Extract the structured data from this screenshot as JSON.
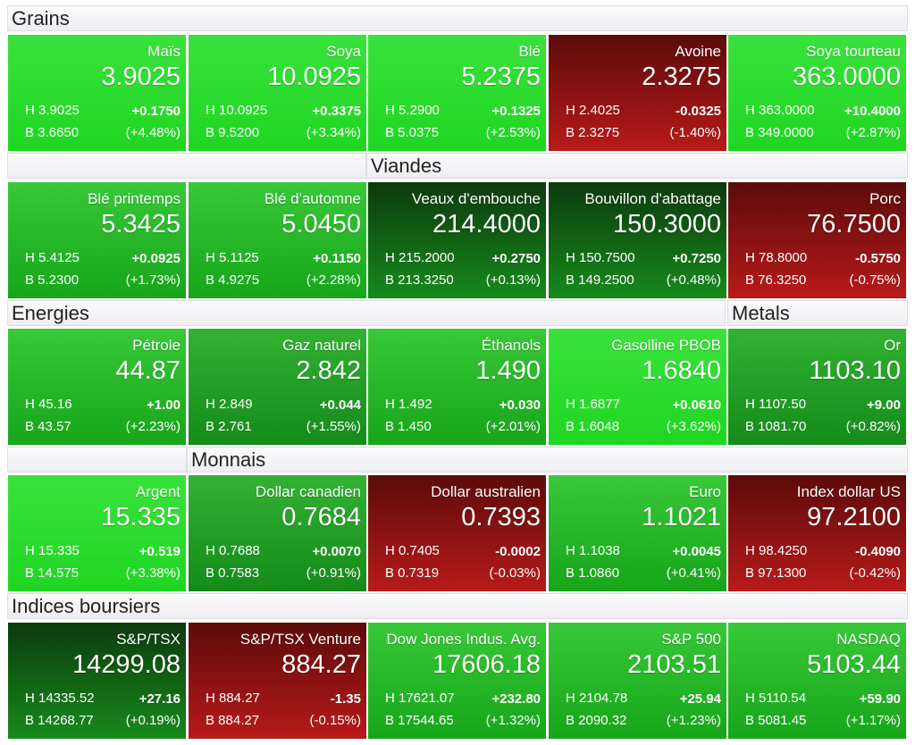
{
  "sections": {
    "grains": "Grains",
    "viandes": "Viandes",
    "energies": "Energies",
    "metals": "Metals",
    "monnais": "Monnais",
    "indices": "Indices boursiers"
  },
  "tiles": [
    {
      "name": "Maïs",
      "price": "3.9025",
      "high": "H 3.9025",
      "low": "B 3.6650",
      "change": "+0.1750",
      "pct": "(+4.48%)"
    },
    {
      "name": "Soya",
      "price": "10.0925",
      "high": "H 10.0925",
      "low": "B 9.5200",
      "change": "+0.3375",
      "pct": "(+3.34%)"
    },
    {
      "name": "Blé",
      "price": "5.2375",
      "high": "H 5.2900",
      "low": "B 5.0375",
      "change": "+0.1325",
      "pct": "(+2.53%)"
    },
    {
      "name": "Avoine",
      "price": "2.3275",
      "high": "H 2.4025",
      "low": "B 2.3275",
      "change": "-0.0325",
      "pct": "(-1.40%)"
    },
    {
      "name": "Soya tourteau",
      "price": "363.0000",
      "high": "H 363.0000",
      "low": "B 349.0000",
      "change": "+10.4000",
      "pct": "(+2.87%)"
    },
    {
      "name": "Blé printemps",
      "price": "5.3425",
      "high": "H 5.4125",
      "low": "B 5.2300",
      "change": "+0.0925",
      "pct": "(+1.73%)"
    },
    {
      "name": "Blé d'automne",
      "price": "5.0450",
      "high": "H 5.1125",
      "low": "B 4.9275",
      "change": "+0.1150",
      "pct": "(+2.28%)"
    },
    {
      "name": "Veaux d'embouche",
      "price": "214.4000",
      "high": "H 215.2000",
      "low": "B 213.3250",
      "change": "+0.2750",
      "pct": "(+0.13%)"
    },
    {
      "name": "Bouvillon d'abattage",
      "price": "150.3000",
      "high": "H 150.7500",
      "low": "B 149.2500",
      "change": "+0.7250",
      "pct": "(+0.48%)"
    },
    {
      "name": "Porc",
      "price": "76.7500",
      "high": "H 78.8000",
      "low": "B 76.3250",
      "change": "-0.5750",
      "pct": "(-0.75%)"
    },
    {
      "name": "Pétrole",
      "price": "44.87",
      "high": "H 45.16",
      "low": "B 43.57",
      "change": "+1.00",
      "pct": "(+2.23%)"
    },
    {
      "name": "Gaz naturel",
      "price": "2.842",
      "high": "H 2.849",
      "low": "B 2.761",
      "change": "+0.044",
      "pct": "(+1.55%)"
    },
    {
      "name": "Éthanols",
      "price": "1.490",
      "high": "H 1.492",
      "low": "B 1.450",
      "change": "+0.030",
      "pct": "(+2.01%)"
    },
    {
      "name": "Gasolline PBOB",
      "price": "1.6840",
      "high": "H 1.6877",
      "low": "B 1.6048",
      "change": "+0.0610",
      "pct": "(+3.62%)"
    },
    {
      "name": "Or",
      "price": "1103.10",
      "high": "H 1107.50",
      "low": "B 1081.70",
      "change": "+9.00",
      "pct": "(+0.82%)"
    },
    {
      "name": "Argent",
      "price": "15.335",
      "high": "H 15.335",
      "low": "B 14.575",
      "change": "+0.519",
      "pct": "(+3.38%)"
    },
    {
      "name": "Dollar canadien",
      "price": "0.7684",
      "high": "H 0.7688",
      "low": "B 0.7583",
      "change": "+0.0070",
      "pct": "(+0.91%)"
    },
    {
      "name": "Dollar australien",
      "price": "0.7393",
      "high": "H 0.7405",
      "low": "B 0.7319",
      "change": "-0.0002",
      "pct": "(-0.03%)"
    },
    {
      "name": "Euro",
      "price": "1.1021",
      "high": "H 1.1038",
      "low": "B 1.0860",
      "change": "+0.0045",
      "pct": "(+0.41%)"
    },
    {
      "name": "Index dollar US",
      "price": "97.2100",
      "high": "H 98.4250",
      "low": "B 97.1300",
      "change": "-0.4090",
      "pct": "(-0.42%)"
    },
    {
      "name": "S&P/TSX",
      "price": "14299.08",
      "high": "H 14335.52",
      "low": "B 14268.77",
      "change": "+27.16",
      "pct": "(+0.19%)"
    },
    {
      "name": "S&P/TSX Venture",
      "price": "884.27",
      "high": "H 884.27",
      "low": "B 884.27",
      "change": "-1.35",
      "pct": "(-0.15%)"
    },
    {
      "name": "Dow Jones Indus. Avg.",
      "price": "17606.18",
      "high": "H 17621.07",
      "low": "B 17544.65",
      "change": "+232.80",
      "pct": "(+1.32%)"
    },
    {
      "name": "S&P 500",
      "price": "2103.51",
      "high": "H 2104.78",
      "low": "B 2090.32",
      "change": "+25.94",
      "pct": "(+1.23%)"
    },
    {
      "name": "NASDAQ",
      "price": "5103.44",
      "high": "H 5110.54",
      "low": "B 5081.45",
      "change": "+59.90",
      "pct": "(+1.17%)"
    }
  ]
}
